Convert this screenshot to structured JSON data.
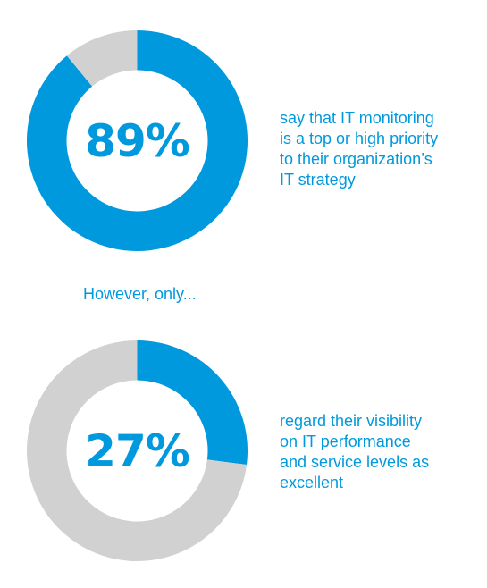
{
  "colors": {
    "accent": "#0099dd",
    "remainder": "#d1d1d1"
  },
  "chart_data": [
    {
      "type": "pie",
      "variant": "donut",
      "value": 89,
      "total": 100,
      "slices": [
        {
          "label": "89%",
          "value": 89,
          "color": "#0099dd"
        },
        {
          "value": 11,
          "color": "#d1d1d1"
        }
      ],
      "center_label": "89%",
      "caption_lines": [
        "say that IT monitoring",
        "is a top or high priority",
        "to their organization’s",
        "IT strategy"
      ]
    },
    {
      "type": "pie",
      "variant": "donut",
      "value": 27,
      "total": 100,
      "slices": [
        {
          "label": "27%",
          "value": 27,
          "color": "#0099dd"
        },
        {
          "value": 73,
          "color": "#d1d1d1"
        }
      ],
      "center_label": "27%",
      "caption_lines": [
        "regard their visibility",
        "on IT performance",
        "and service levels as",
        "excellent"
      ]
    }
  ],
  "bridge_text": "However, only..."
}
